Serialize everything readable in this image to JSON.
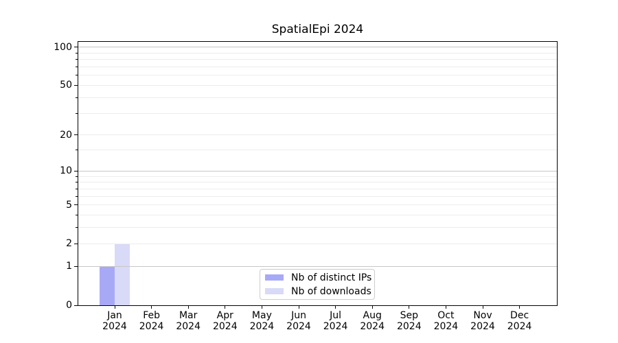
{
  "chart_data": {
    "type": "bar",
    "title": "SpatialEpi 2024",
    "x_months": [
      "Jan",
      "Feb",
      "Mar",
      "Apr",
      "May",
      "Jun",
      "Jul",
      "Aug",
      "Sep",
      "Oct",
      "Nov",
      "Dec"
    ],
    "x_year": "2024",
    "series": [
      {
        "name": "Nb of distinct IPs",
        "color": "#a8a9f6",
        "values": [
          1,
          0,
          0,
          0,
          0,
          0,
          0,
          0,
          0,
          0,
          0,
          0
        ]
      },
      {
        "name": "Nb of downloads",
        "color": "#d9daf8",
        "values": [
          2,
          0,
          0,
          0,
          0,
          0,
          0,
          0,
          0,
          0,
          0,
          0
        ]
      }
    ],
    "yscale": "log1p",
    "ylim": [
      0,
      110
    ],
    "yticks_major": [
      0,
      1,
      2,
      5,
      10,
      20,
      50,
      100
    ],
    "yticks_minor": [
      3,
      4,
      6,
      7,
      8,
      9,
      15,
      30,
      40,
      60,
      70,
      80,
      90
    ],
    "decade_lines": [
      1,
      10,
      100
    ],
    "grid": "on",
    "legend_position": "lower-center-inside"
  },
  "colors": {
    "axis": "#000000",
    "grid_major": "#c6c6c6",
    "grid_minor": "#ececec",
    "legend_border": "#cccccc",
    "text": "#000000",
    "background": "#ffffff"
  }
}
